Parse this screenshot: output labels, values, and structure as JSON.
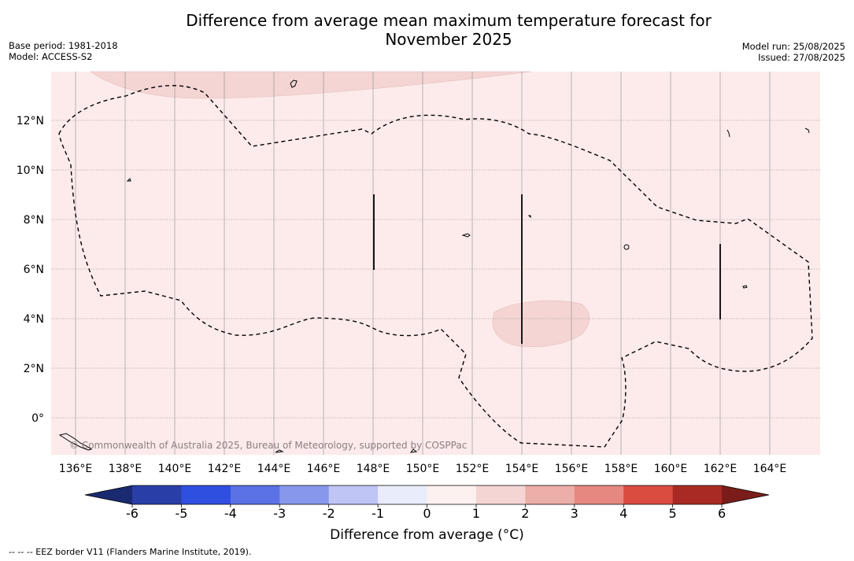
{
  "title_line1": "Difference from average mean maximum temperature forecast for",
  "title_line2": "November 2025",
  "base_period": "Base period: 1981-2018",
  "model": "Model: ACCESS-S2",
  "model_run": "Model run: 25/08/2025",
  "issued": "Issued: 27/08/2025",
  "copyright": "© Commonwealth of Australia 2025, Bureau of Meteorology, supported by COSPPac",
  "footnote": "--  --  -- EEZ border V11 (Flanders Marine Institute, 2019).",
  "colorbar": {
    "label": "Difference from average (°C)",
    "ticks": [
      "-6",
      "-5",
      "-4",
      "-3",
      "-2",
      "-1",
      "0",
      "1",
      "2",
      "3",
      "4",
      "5",
      "6"
    ],
    "colors": [
      "#2a3ea8",
      "#2f4fe0",
      "#5a72e6",
      "#8797ec",
      "#bfc6f5",
      "#e9ecfb",
      "#fdf1f0",
      "#f4d5d4",
      "#ecaea8",
      "#e68880",
      "#da4c40",
      "#a92a25"
    ],
    "extend_low_color": "#1a2a70",
    "extend_high_color": "#7a1d1a"
  },
  "map": {
    "lon_range": [
      135,
      166
    ],
    "lat_range": [
      -1.5,
      14
    ],
    "background_class_color": "#fcebea",
    "warm_patch_color": "#f4d5d4",
    "lon_labels": [
      "136°E",
      "138°E",
      "140°E",
      "142°E",
      "144°E",
      "146°E",
      "148°E",
      "150°E",
      "152°E",
      "154°E",
      "156°E",
      "158°E",
      "160°E",
      "162°E",
      "164°E"
    ],
    "lat_labels": [
      "12°N",
      "10°N",
      "8°N",
      "6°N",
      "4°N",
      "2°N",
      "0°"
    ]
  }
}
